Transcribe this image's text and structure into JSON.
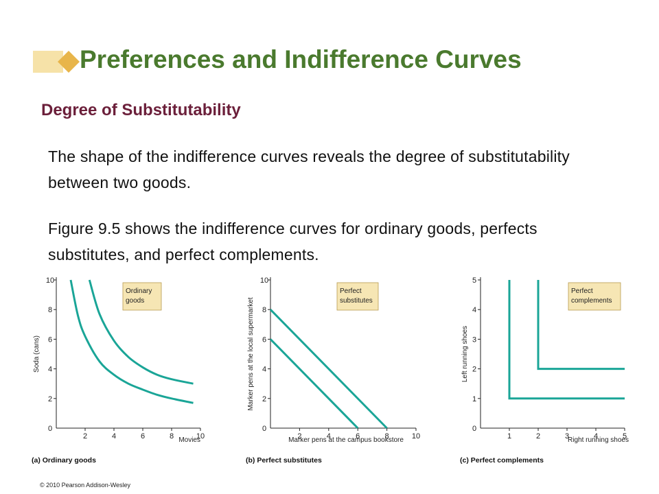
{
  "title": "Preferences and Indifference Curves",
  "subtitle": "Degree of Substitutability",
  "paragraphs": [
    "The shape of the indifference curves reveals the degree of substitutability between two goods.",
    "Figure 9.5 shows the indifference curves for ordinary goods, perfects substitutes, and perfect complements."
  ],
  "copyright": "© 2010 Pearson Addison-Wesley",
  "colors": {
    "title": "#4a7a2e",
    "subtitle": "#6b1f3a",
    "curve": "#1aa597",
    "labelbox": "#f6e6b4"
  },
  "chart_data": [
    {
      "type": "line",
      "caption": "(a) Ordinary goods",
      "xlabel": "Movies",
      "ylabel": "Soda (cans)",
      "xlim": [
        0,
        10
      ],
      "ylim": [
        0,
        10
      ],
      "xticks": [
        2,
        4,
        6,
        8,
        10
      ],
      "yticks": [
        2,
        4,
        6,
        8,
        10
      ],
      "label_box": [
        "Ordinary",
        "goods"
      ],
      "series": [
        {
          "x": [
            1,
            1.5,
            2,
            3,
            4,
            5,
            6,
            7,
            8,
            9.5
          ],
          "y": [
            10,
            7.6,
            6.2,
            4.5,
            3.6,
            3.0,
            2.6,
            2.25,
            2.0,
            1.7
          ]
        },
        {
          "x": [
            2.3,
            3,
            4,
            5,
            6,
            7,
            8,
            9.5
          ],
          "y": [
            10,
            7.7,
            5.9,
            4.8,
            4.1,
            3.6,
            3.3,
            3.0
          ]
        }
      ]
    },
    {
      "type": "line",
      "caption": "(b) Perfect substitutes",
      "xlabel": "Marker pens at the campus bookstore",
      "ylabel": "Marker pens at the local supermarket",
      "xlim": [
        0,
        10
      ],
      "ylim": [
        0,
        10
      ],
      "xticks": [
        2,
        4,
        6,
        8,
        10
      ],
      "yticks": [
        2,
        4,
        6,
        8,
        10
      ],
      "label_box": [
        "Perfect",
        "substitutes"
      ],
      "series": [
        {
          "x": [
            0,
            6
          ],
          "y": [
            6,
            0
          ]
        },
        {
          "x": [
            0,
            8
          ],
          "y": [
            8,
            0
          ]
        }
      ]
    },
    {
      "type": "line",
      "caption": "(c) Perfect complements",
      "xlabel": "Right running shoes",
      "ylabel": "Left running shoes",
      "xlim": [
        0,
        5
      ],
      "ylim": [
        0,
        5
      ],
      "xticks": [
        1,
        2,
        3,
        4,
        5
      ],
      "yticks": [
        1,
        2,
        3,
        4,
        5
      ],
      "label_box": [
        "Perfect",
        "complements"
      ],
      "series": [
        {
          "x": [
            1,
            1,
            5
          ],
          "y": [
            5,
            1,
            1
          ]
        },
        {
          "x": [
            2,
            2,
            5
          ],
          "y": [
            5,
            2,
            2
          ]
        }
      ]
    }
  ]
}
